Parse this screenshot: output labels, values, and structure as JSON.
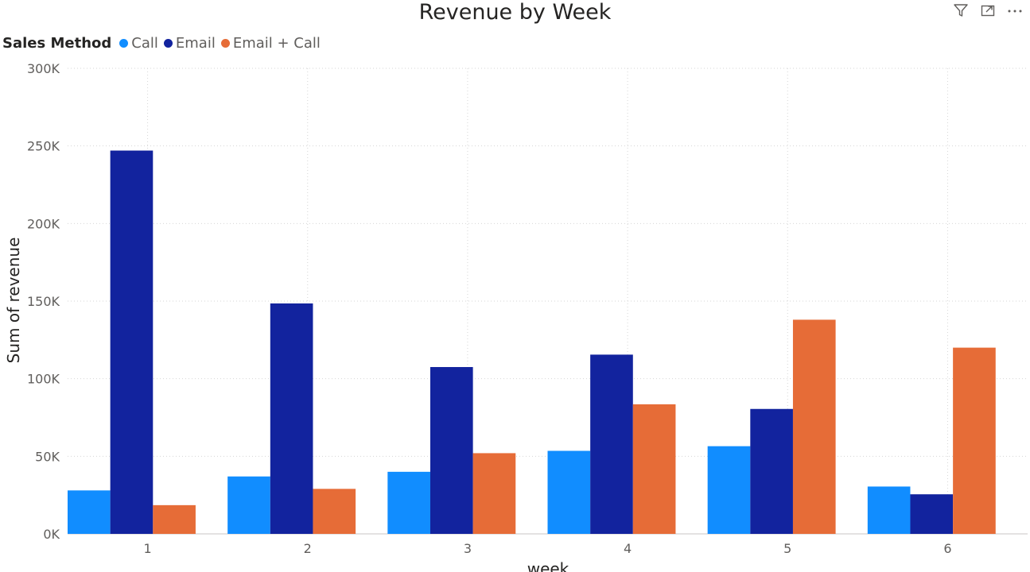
{
  "header": {
    "title": "Revenue by Week",
    "icons": [
      "filter-icon",
      "focus-mode-icon",
      "more-options-icon"
    ],
    "more_label": "···"
  },
  "legend": {
    "title": "Sales Method",
    "items": [
      {
        "label": "Call",
        "color": "#118DFF"
      },
      {
        "label": "Email",
        "color": "#12239E"
      },
      {
        "label": "Email + Call",
        "color": "#E66C37"
      }
    ]
  },
  "chart_data": {
    "type": "bar",
    "title": "Revenue by Week",
    "xlabel": "week",
    "ylabel": "Sum of revenue",
    "categories": [
      "1",
      "2",
      "3",
      "4",
      "5",
      "6"
    ],
    "series": [
      {
        "name": "Call",
        "color": "#118DFF",
        "values": [
          28000,
          37000,
          40000,
          53500,
          56500,
          30500
        ]
      },
      {
        "name": "Email",
        "color": "#12239E",
        "values": [
          247000,
          148500,
          107500,
          115500,
          80500,
          25500
        ]
      },
      {
        "name": "Email + Call",
        "color": "#E66C37",
        "values": [
          18500,
          29000,
          52000,
          83500,
          138000,
          120000
        ]
      }
    ],
    "ylim": [
      0,
      300000
    ],
    "yticks": [
      0,
      50000,
      100000,
      150000,
      200000,
      250000,
      300000
    ],
    "ytick_labels": [
      "0K",
      "50K",
      "100K",
      "150K",
      "200K",
      "250K",
      "300K"
    ],
    "grid": true,
    "legend_position": "top-left"
  }
}
